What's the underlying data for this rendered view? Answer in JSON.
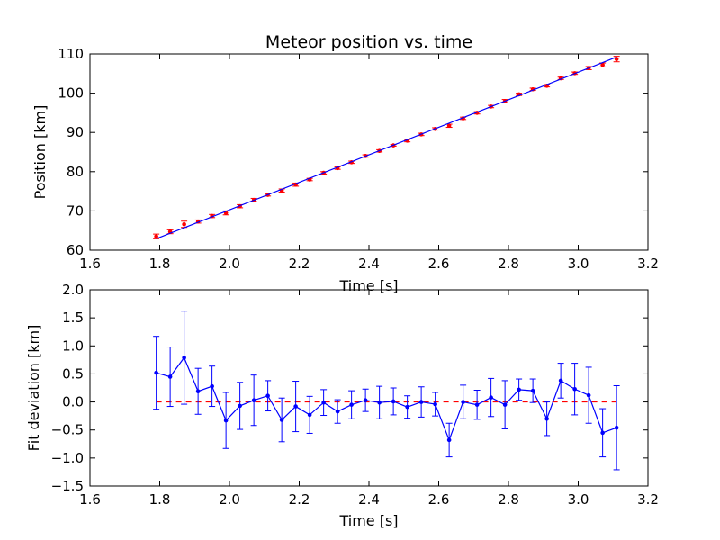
{
  "chart_data": [
    {
      "type": "scatter",
      "title": "Meteor position vs. time",
      "xlabel": "Time [s]",
      "ylabel": "Position [km]",
      "xlim": [
        1.6,
        3.2
      ],
      "ylim": [
        60,
        110
      ],
      "xticks": [
        "1.6",
        "1.8",
        "2.0",
        "2.2",
        "2.4",
        "2.6",
        "2.8",
        "3.0",
        "3.2"
      ],
      "yticks": [
        "60",
        "70",
        "80",
        "90",
        "100",
        "110"
      ],
      "grid": false,
      "colors": {
        "points": "#ff0000",
        "fit": "#0000ff"
      },
      "series": [
        {
          "style": "points-with-error-bars",
          "x": [
            1.79,
            1.83,
            1.87,
            1.91,
            1.95,
            1.99,
            2.03,
            2.07,
            2.11,
            2.15,
            2.19,
            2.23,
            2.27,
            2.31,
            2.35,
            2.39,
            2.43,
            2.47,
            2.51,
            2.55,
            2.59,
            2.63,
            2.67,
            2.71,
            2.75,
            2.79,
            2.83,
            2.87,
            2.91,
            2.95,
            2.99,
            3.03,
            3.07,
            3.11
          ],
          "y": [
            63.5,
            64.7,
            66.6,
            67.3,
            68.7,
            69.5,
            71.2,
            72.8,
            74.1,
            75.2,
            76.7,
            78.0,
            79.7,
            80.9,
            82.4,
            84.0,
            85.3,
            86.7,
            87.9,
            89.5,
            90.9,
            91.7,
            93.6,
            95.0,
            96.6,
            98.0,
            99.7,
            101.0,
            101.9,
            103.8,
            105.1,
            106.4,
            107.2,
            108.7
          ],
          "yerr": [
            0.6,
            0.5,
            0.8,
            0.4,
            0.4,
            0.5,
            0.4,
            0.4,
            0.3,
            0.4,
            0.4,
            0.3,
            0.3,
            0.3,
            0.3,
            0.3,
            0.3,
            0.2,
            0.3,
            0.3,
            0.3,
            0.4,
            0.3,
            0.3,
            0.3,
            0.4,
            0.3,
            0.3,
            0.3,
            0.3,
            0.3,
            0.4,
            0.5,
            0.7
          ]
        },
        {
          "style": "line",
          "x": [
            1.79,
            3.11
          ],
          "y": [
            62.9,
            109.2
          ]
        }
      ]
    },
    {
      "type": "line",
      "title": "",
      "xlabel": "Time [s]",
      "ylabel": "Fit deviation [km]",
      "xlim": [
        1.6,
        3.2
      ],
      "ylim": [
        -1.5,
        2.0
      ],
      "xticks": [
        "1.6",
        "1.8",
        "2.0",
        "2.2",
        "2.4",
        "2.6",
        "2.8",
        "3.0",
        "3.2"
      ],
      "yticks": [
        "−1.5",
        "−1.0",
        "−0.5",
        "0.0",
        "0.5",
        "1.0",
        "1.5",
        "2.0"
      ],
      "grid": false,
      "colors": {
        "deviation": "#0000ff",
        "zero_line": "#ff0000"
      },
      "series": [
        {
          "style": "line-with-error-bars",
          "x": [
            1.79,
            1.83,
            1.87,
            1.91,
            1.95,
            1.99,
            2.03,
            2.07,
            2.11,
            2.15,
            2.19,
            2.23,
            2.27,
            2.31,
            2.35,
            2.39,
            2.43,
            2.47,
            2.51,
            2.55,
            2.59,
            2.63,
            2.67,
            2.71,
            2.75,
            2.79,
            2.83,
            2.87,
            2.91,
            2.95,
            2.99,
            3.03,
            3.07,
            3.11
          ],
          "y": [
            0.52,
            0.45,
            0.79,
            0.19,
            0.28,
            -0.33,
            -0.07,
            0.03,
            0.11,
            -0.32,
            -0.08,
            -0.23,
            -0.01,
            -0.17,
            -0.05,
            0.03,
            -0.01,
            0.01,
            -0.09,
            0.0,
            -0.04,
            -0.68,
            0.0,
            -0.05,
            0.08,
            -0.05,
            0.22,
            0.2,
            -0.3,
            0.38,
            0.23,
            0.12,
            -0.55,
            -0.46
          ],
          "yerr": [
            0.65,
            0.53,
            0.83,
            0.41,
            0.36,
            0.5,
            0.42,
            0.45,
            0.27,
            0.39,
            0.45,
            0.33,
            0.23,
            0.21,
            0.25,
            0.2,
            0.29,
            0.24,
            0.2,
            0.27,
            0.21,
            0.3,
            0.3,
            0.26,
            0.34,
            0.43,
            0.19,
            0.21,
            0.3,
            0.31,
            0.46,
            0.5,
            0.43,
            0.75
          ]
        },
        {
          "style": "dashed-reference-line",
          "x": [
            1.79,
            3.11
          ],
          "y": [
            0,
            0
          ]
        }
      ]
    }
  ]
}
